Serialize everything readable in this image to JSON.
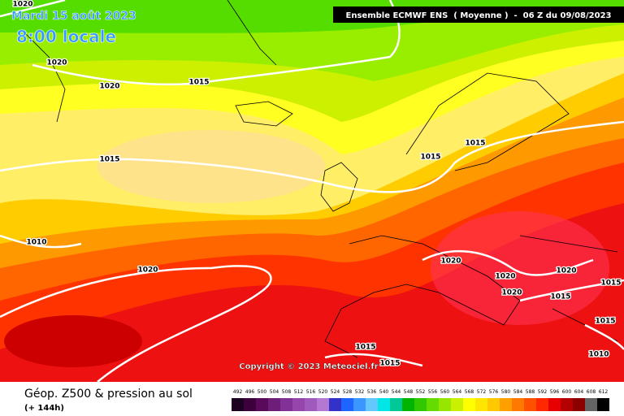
{
  "header": {
    "date": "Mardi 15 août 2023",
    "time": "8:00 locale",
    "run": "Ensemble ECMWF ENS  ( Moyenne )  -  06 Z du 09/08/2023"
  },
  "isobar_labels": [
    1020,
    1020,
    1020,
    1015,
    1015,
    1015,
    1015,
    1010,
    1020,
    1020,
    1020,
    1020,
    1020,
    1015,
    1015,
    1015,
    1010,
    1015,
    1015
  ],
  "copyright": "Copyright © 2023 Meteociel.fr",
  "footer": {
    "title": "Géop. Z500 & pression au sol",
    "subtitle": "(+ 144h)"
  },
  "scale": {
    "labels": [
      492,
      496,
      500,
      504,
      508,
      512,
      516,
      520,
      524,
      528,
      532,
      536,
      540,
      544,
      548,
      552,
      556,
      560,
      564,
      568,
      572,
      576,
      580,
      584,
      588,
      592,
      596,
      600,
      604,
      608,
      612
    ],
    "colors": [
      "#1e0020",
      "#3c003c",
      "#5a0a5a",
      "#6e1e78",
      "#823296",
      "#9646aa",
      "#a05abe",
      "#b478d2",
      "#3232c8",
      "#1e64ff",
      "#3c96ff",
      "#64c8ff",
      "#00e6e6",
      "#00c896",
      "#00b400",
      "#32c800",
      "#64dc00",
      "#96e600",
      "#c8f000",
      "#ffff00",
      "#ffe600",
      "#ffc800",
      "#ffa000",
      "#ff7800",
      "#ff5000",
      "#ff2800",
      "#e60000",
      "#b40000",
      "#8c0000",
      "#646464",
      "#000000"
    ]
  }
}
